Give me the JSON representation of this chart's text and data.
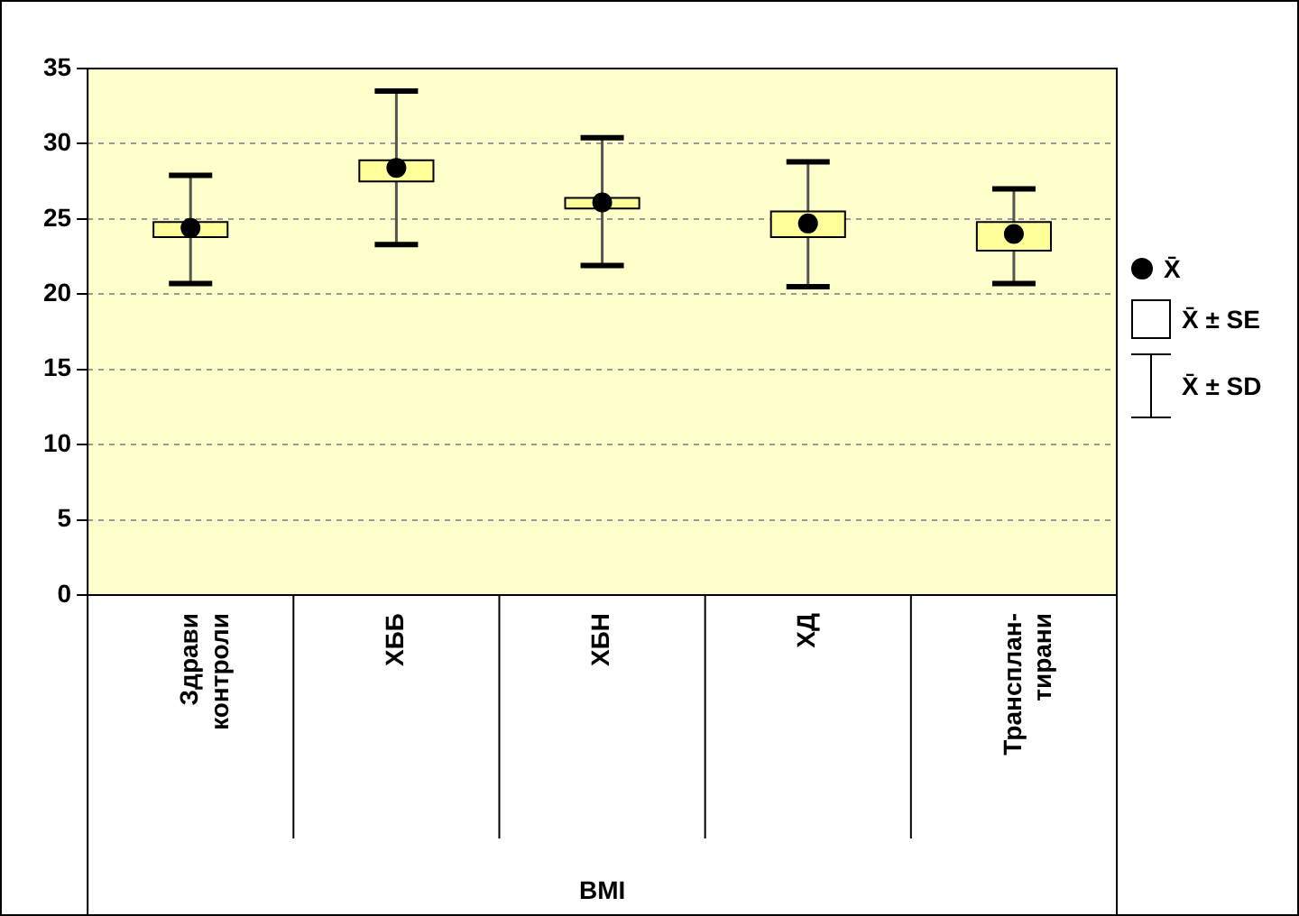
{
  "chart_data": {
    "type": "box",
    "xlabel": "BMI",
    "categories": [
      "Здрави контроли",
      "ХББ",
      "ХБН",
      "ХД",
      "Трансплан-тирани"
    ],
    "color": "#ffff99",
    "boxes": [
      {
        "low": 20.7,
        "q1": 23.8,
        "median": 24.4,
        "q3": 24.8,
        "high": 27.9
      },
      {
        "low": 23.3,
        "q1": 27.5,
        "median": 28.4,
        "q3": 28.9,
        "high": 33.5
      },
      {
        "low": 21.9,
        "q1": 25.7,
        "median": 26.1,
        "q3": 26.4,
        "high": 30.4
      },
      {
        "low": 20.5,
        "q1": 23.8,
        "median": 24.7,
        "q3": 25.5,
        "high": 28.8
      },
      {
        "low": 20.7,
        "q1": 22.9,
        "median": 24.0,
        "q3": 24.8,
        "high": 27.0
      }
    ],
    "ylim": [
      0,
      35
    ],
    "yticks": [
      0,
      5,
      10,
      15,
      20,
      25,
      30,
      35
    ],
    "grid": "y",
    "marker": "circle",
    "annotations": [
      "X̄",
      "X̄ ± SE",
      "X̄ ± SD"
    ]
  }
}
